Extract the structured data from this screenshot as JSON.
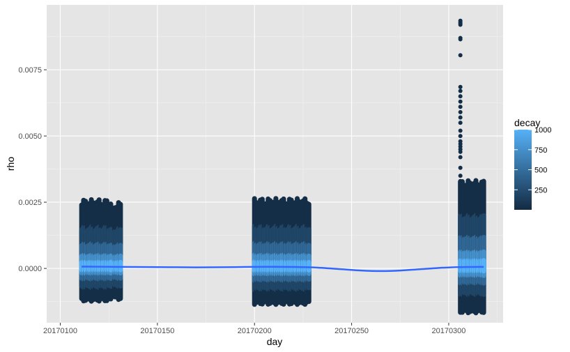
{
  "chart_data": {
    "type": "scatter",
    "title": "",
    "xlabel": "day",
    "ylabel": "rho",
    "xlim": [
      20170093,
      20170328
    ],
    "ylim": [
      -0.00205,
      0.00995
    ],
    "x_ticks": [
      {
        "value": 20170100,
        "label": "20170100"
      },
      {
        "value": 20170150,
        "label": "20170150"
      },
      {
        "value": 20170200,
        "label": "20170200"
      },
      {
        "value": 20170250,
        "label": "20170250"
      },
      {
        "value": 20170300,
        "label": "20170300"
      }
    ],
    "y_ticks": [
      {
        "value": 0.0,
        "label": "0.0000"
      },
      {
        "value": 0.0025,
        "label": "0.0025"
      },
      {
        "value": 0.005,
        "label": "0.0050"
      },
      {
        "value": 0.0075,
        "label": "0.0075"
      }
    ],
    "grid": true,
    "background": "#e5e5e5",
    "point_blocks": [
      {
        "x_range": [
          20170111,
          20170126
        ],
        "rho_min": -0.00118,
        "rho_max": 0.00248
      },
      {
        "x_range": [
          20170128,
          20170131
        ],
        "rho_min": -0.00112,
        "rho_max": 0.00238
      },
      {
        "x_range": [
          20170200,
          20170228
        ],
        "rho_min": -0.0013,
        "rho_max": 0.00252
      },
      {
        "x_range": [
          20170306,
          20170318
        ],
        "rho_min": -0.00162,
        "rho_max": 0.0032
      }
    ],
    "outliers": [
      {
        "x": 20170306,
        "rho": 0.00935
      },
      {
        "x": 20170306,
        "rho": 0.0093
      },
      {
        "x": 20170306,
        "rho": 0.00925
      },
      {
        "x": 20170306,
        "rho": 0.0092
      },
      {
        "x": 20170306,
        "rho": 0.0087
      },
      {
        "x": 20170306,
        "rho": 0.00865
      },
      {
        "x": 20170306,
        "rho": 0.00805
      },
      {
        "x": 20170306,
        "rho": 0.00685
      },
      {
        "x": 20170306,
        "rho": 0.0067
      },
      {
        "x": 20170306,
        "rho": 0.0065
      },
      {
        "x": 20170306,
        "rho": 0.0063
      },
      {
        "x": 20170306,
        "rho": 0.0061
      },
      {
        "x": 20170306,
        "rho": 0.0059
      },
      {
        "x": 20170306,
        "rho": 0.0057
      },
      {
        "x": 20170306,
        "rho": 0.0055
      },
      {
        "x": 20170306,
        "rho": 0.0052
      },
      {
        "x": 20170306,
        "rho": 0.005
      },
      {
        "x": 20170306,
        "rho": 0.0048
      },
      {
        "x": 20170306,
        "rho": 0.0047
      },
      {
        "x": 20170306,
        "rho": 0.0046
      },
      {
        "x": 20170306,
        "rho": 0.0045
      },
      {
        "x": 20170306,
        "rho": 0.0044
      },
      {
        "x": 20170306,
        "rho": 0.0042
      },
      {
        "x": 20170306,
        "rho": 0.0038
      },
      {
        "x": 20170306,
        "rho": 0.0035
      },
      {
        "x": 20170306,
        "rho": 0.0033
      },
      {
        "x": 20170306,
        "rho": 0.0031
      },
      {
        "x": 20170306,
        "rho": 0.0029
      }
    ],
    "smooth_line": {
      "color": "#3366ff",
      "x": [
        20170111,
        20170130,
        20170150,
        20170170,
        20170190,
        20170200,
        20170215,
        20170230,
        20170245,
        20170255,
        20170265,
        20170275,
        20170285,
        20170295,
        20170305,
        20170318
      ],
      "y": [
        7e-05,
        6e-05,
        5e-05,
        4e-05,
        5e-05,
        6e-05,
        6e-05,
        4e-05,
        -3e-05,
        -8e-05,
        -0.0001,
        -8e-05,
        -3e-05,
        2e-05,
        5e-05,
        6e-05
      ]
    },
    "legend": {
      "title": "decay",
      "position": "right",
      "range": [
        0,
        1000
      ],
      "breaks": [
        {
          "value": 250,
          "label": "250"
        },
        {
          "value": 500,
          "label": "500"
        },
        {
          "value": 750,
          "label": "750"
        },
        {
          "value": 1000,
          "label": "1000"
        }
      ],
      "low_color": "#132b43",
      "high_color": "#56b1f7"
    }
  }
}
